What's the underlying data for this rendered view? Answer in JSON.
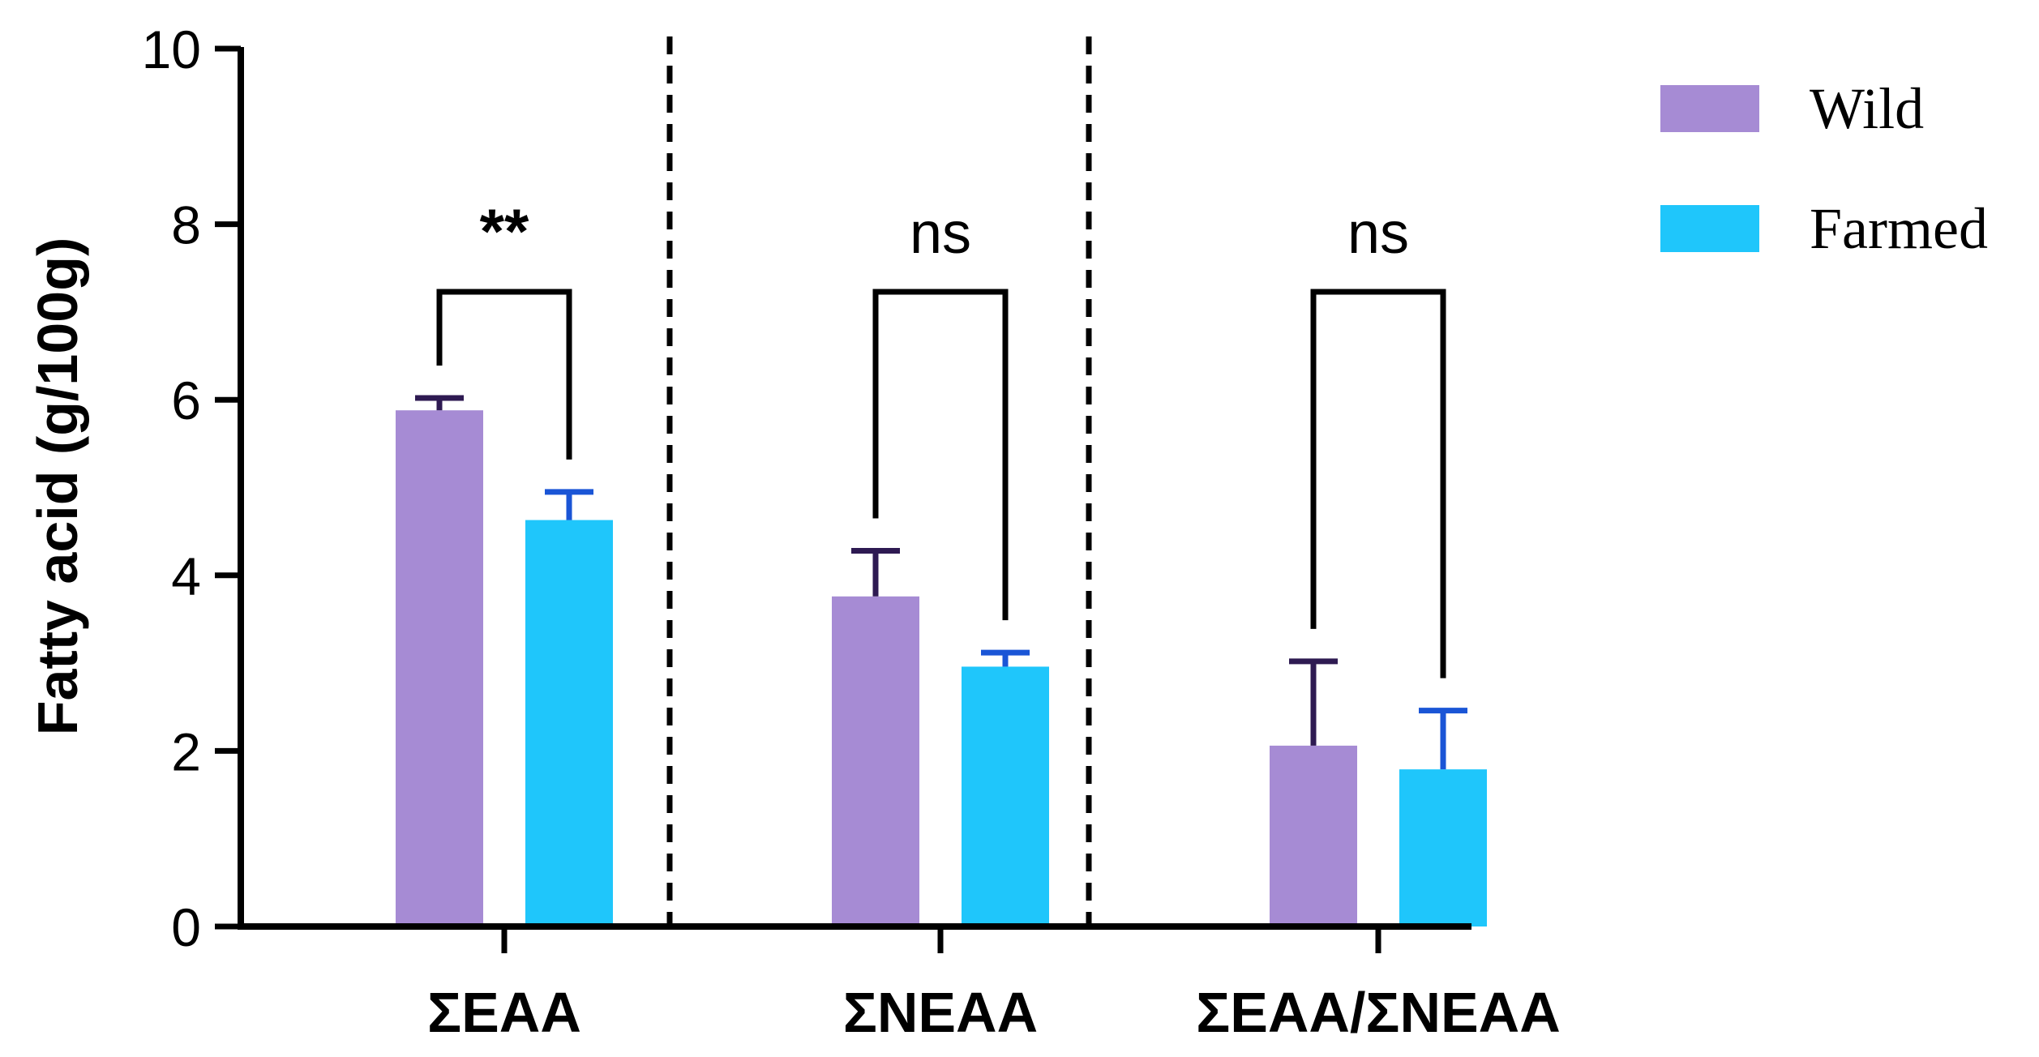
{
  "chart_data": {
    "type": "bar",
    "title": "",
    "xlabel": "",
    "ylabel": "Fatty acid (g/100g)",
    "ylim": [
      0,
      10
    ],
    "yticks": [
      0,
      2,
      4,
      6,
      8,
      10
    ],
    "ytick_labels": [
      "0",
      "2",
      "4",
      "6",
      "8",
      "10"
    ],
    "grid": false,
    "legend_position": "top-right",
    "categories": [
      "ΣEAA",
      "ΣNEAA",
      "ΣEAA/ΣNEAA"
    ],
    "series": [
      {
        "name": "Wild",
        "color": "#a68bd4",
        "error_color": "#2e1a52",
        "values": [
          5.88,
          3.76,
          2.06
        ],
        "errors": [
          0.14,
          0.52,
          0.96
        ]
      },
      {
        "name": "Farmed",
        "color": "#1fc6fb",
        "error_color": "#1a55d6",
        "values": [
          4.63,
          2.96,
          1.79
        ],
        "errors": [
          0.32,
          0.16,
          0.67
        ]
      }
    ],
    "significance": [
      "**",
      "ns",
      "ns"
    ],
    "separators": "dashed vertical lines between categories"
  }
}
